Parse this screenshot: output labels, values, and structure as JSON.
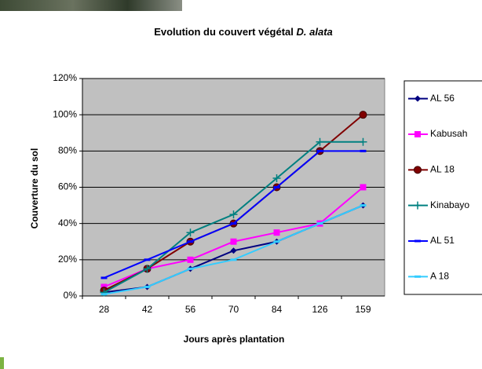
{
  "chart_data": {
    "type": "line",
    "title": "Evolution du couvert végétal",
    "title_italic": "D. alata",
    "x_label": "Jours après plantation",
    "y_label": "Couverture du sol",
    "categories": [
      "28",
      "42",
      "56",
      "70",
      "84",
      "126",
      "159"
    ],
    "series": [
      {
        "name": "AL 56",
        "color": "#000080",
        "marker": "diamond",
        "values": [
          2,
          5,
          15,
          25,
          30,
          40,
          50
        ]
      },
      {
        "name": "Kabusah",
        "color": "#ff00ff",
        "marker": "square",
        "values": [
          5,
          15,
          20,
          30,
          35,
          40,
          60
        ]
      },
      {
        "name": "AL 18",
        "color": "#800000",
        "marker": "circle",
        "values": [
          3,
          15,
          30,
          40,
          60,
          80,
          100
        ]
      },
      {
        "name": "Kinabayo",
        "color": "#008080",
        "marker": "plus",
        "values": [
          2,
          15,
          35,
          45,
          65,
          85,
          85
        ]
      },
      {
        "name": "AL 51",
        "color": "#0000ff",
        "marker": "dash",
        "values": [
          10,
          20,
          30,
          40,
          60,
          80,
          80
        ]
      },
      {
        "name": "A 18",
        "color": "#33ccff",
        "marker": "dash",
        "values": [
          1,
          5,
          15,
          20,
          30,
          40,
          50
        ]
      }
    ],
    "ylim": [
      0,
      120
    ],
    "yticks": [
      {
        "value": 0,
        "label": "0%"
      },
      {
        "value": 20,
        "label": "20%"
      },
      {
        "value": 40,
        "label": "40%"
      },
      {
        "value": 60,
        "label": "60%"
      },
      {
        "value": 80,
        "label": "80%"
      },
      {
        "value": 100,
        "label": "100%"
      },
      {
        "value": 120,
        "label": "120%"
      }
    ],
    "grid": true,
    "plot_background": "#c0c0c0",
    "legend": "right"
  }
}
